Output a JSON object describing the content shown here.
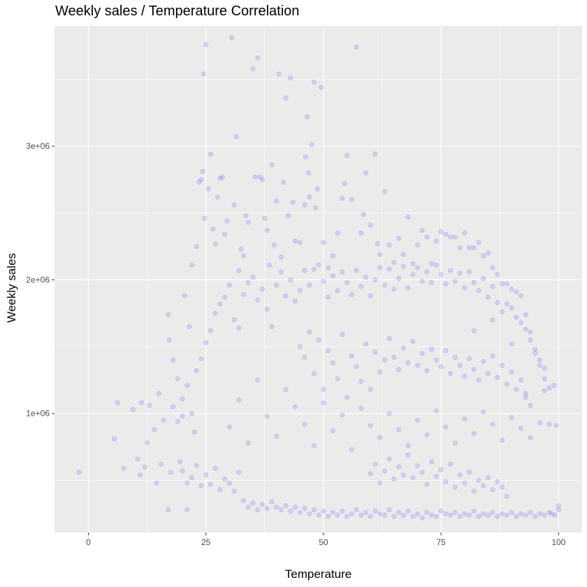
{
  "chart_data": {
    "type": "scatter",
    "title": "Weekly sales / Temperature Correlation",
    "xlabel": "Temperature",
    "ylabel": "Weekly sales",
    "xlim": [
      -7.2,
      105
    ],
    "ylim": [
      110000,
      3900000
    ],
    "x_ticks": [
      {
        "value": 0,
        "label": "0"
      },
      {
        "value": 25,
        "label": "25"
      },
      {
        "value": 50,
        "label": "50"
      },
      {
        "value": 75,
        "label": "75"
      },
      {
        "value": 100,
        "label": "100"
      }
    ],
    "y_ticks": [
      {
        "value": 1000000,
        "label": "1e+06"
      },
      {
        "value": 2000000,
        "label": "2e+06"
      },
      {
        "value": 3000000,
        "label": "3e+06"
      }
    ],
    "grid": true,
    "legend": "none",
    "point_color": "#0000ff",
    "point_alpha": 0.12,
    "panel_color": "#ebebeb",
    "grid_color": "#ffffff",
    "points": [
      [
        -2,
        560000
      ],
      [
        5.5,
        810000
      ],
      [
        6.2,
        1080000
      ],
      [
        7.5,
        590000
      ],
      [
        9.5,
        1030000
      ],
      [
        10.5,
        660000
      ],
      [
        11,
        540000
      ],
      [
        11.3,
        1080000
      ],
      [
        12,
        600000
      ],
      [
        12.5,
        780000
      ],
      [
        13,
        1060000
      ],
      [
        14,
        880000
      ],
      [
        14.5,
        480000
      ],
      [
        15,
        1150000
      ],
      [
        15.5,
        620000
      ],
      [
        16,
        950000
      ],
      [
        17,
        1740000
      ],
      [
        17.2,
        1550000
      ],
      [
        17,
        280000
      ],
      [
        17.5,
        560000
      ],
      [
        18,
        1400000
      ],
      [
        19,
        1260000
      ],
      [
        19.5,
        640000
      ],
      [
        20,
        980000
      ],
      [
        20.5,
        1880000
      ],
      [
        21,
        280000
      ],
      [
        21.5,
        1650000
      ],
      [
        22,
        2110000
      ],
      [
        22.5,
        860000
      ],
      [
        23,
        2250000
      ],
      [
        23.5,
        2730000
      ],
      [
        24,
        2750000
      ],
      [
        24.3,
        2810000
      ],
      [
        24.7,
        2460000
      ],
      [
        24.5,
        3540000
      ],
      [
        25,
        3760000
      ],
      [
        25.5,
        2680000
      ],
      [
        26,
        2940000
      ],
      [
        26.5,
        2380000
      ],
      [
        27,
        2270000
      ],
      [
        27.5,
        2620000
      ],
      [
        28,
        2760000
      ],
      [
        28.5,
        2770000
      ],
      [
        29,
        2340000
      ],
      [
        29.5,
        2440000
      ],
      [
        30.5,
        3810000
      ],
      [
        31,
        2560000
      ],
      [
        31.5,
        3070000
      ],
      [
        32,
        2070000
      ],
      [
        32.5,
        2230000
      ],
      [
        33,
        2180000
      ],
      [
        33.5,
        2480000
      ],
      [
        34,
        2430000
      ],
      [
        35,
        3580000
      ],
      [
        35.5,
        2770000
      ],
      [
        36,
        3660000
      ],
      [
        36.5,
        2770000
      ],
      [
        37,
        2750000
      ],
      [
        37.5,
        2460000
      ],
      [
        38,
        2370000
      ],
      [
        38.5,
        2110000
      ],
      [
        39,
        2860000
      ],
      [
        39.5,
        2260000
      ],
      [
        40,
        2590000
      ],
      [
        40.5,
        3540000
      ],
      [
        41,
        2170000
      ],
      [
        41.5,
        2730000
      ],
      [
        42,
        3360000
      ],
      [
        42.5,
        2480000
      ],
      [
        43,
        3510000
      ],
      [
        43.5,
        2580000
      ],
      [
        44,
        2290000
      ],
      [
        45,
        2280000
      ],
      [
        46,
        2560000
      ],
      [
        46.2,
        2920000
      ],
      [
        46.5,
        3220000
      ],
      [
        46.8,
        2800000
      ],
      [
        47,
        2620000
      ],
      [
        47.5,
        3010000
      ],
      [
        48,
        3480000
      ],
      [
        48.3,
        2540000
      ],
      [
        48.7,
        2680000
      ],
      [
        49.5,
        3440000
      ],
      [
        50,
        2280000
      ],
      [
        51,
        2090000
      ],
      [
        52,
        2180000
      ],
      [
        53,
        2350000
      ],
      [
        54,
        2610000
      ],
      [
        54.5,
        2720000
      ],
      [
        55,
        2930000
      ],
      [
        56,
        2600000
      ],
      [
        57,
        3740000
      ],
      [
        58,
        2350000
      ],
      [
        58.5,
        2490000
      ],
      [
        59,
        2800000
      ],
      [
        60,
        2410000
      ],
      [
        61,
        2940000
      ],
      [
        61.5,
        2270000
      ],
      [
        62,
        2190000
      ],
      [
        63,
        2660000
      ],
      [
        64,
        2260000
      ],
      [
        65,
        2130000
      ],
      [
        66,
        2310000
      ],
      [
        67,
        2190000
      ],
      [
        68,
        2470000
      ],
      [
        69,
        2120000
      ],
      [
        70,
        2260000
      ],
      [
        71,
        2370000
      ],
      [
        72,
        2320000
      ],
      [
        73,
        2120000
      ],
      [
        74,
        2290000
      ],
      [
        75,
        2360000
      ],
      [
        76,
        2340000
      ],
      [
        77,
        2320000
      ],
      [
        78,
        2320000
      ],
      [
        79,
        2240000
      ],
      [
        80,
        2350000
      ],
      [
        81,
        2240000
      ],
      [
        82,
        2240000
      ],
      [
        83,
        2280000
      ],
      [
        84,
        2180000
      ],
      [
        85,
        2200000
      ],
      [
        86,
        2090000
      ],
      [
        87,
        2040000
      ],
      [
        88,
        1970000
      ],
      [
        89,
        1970000
      ],
      [
        90,
        1930000
      ],
      [
        91,
        1910000
      ],
      [
        92,
        1880000
      ],
      [
        93,
        1740000
      ],
      [
        94,
        1610000
      ],
      [
        95,
        1450000
      ],
      [
        96,
        1360000
      ],
      [
        97,
        1260000
      ],
      [
        98,
        1190000
      ],
      [
        99,
        1210000
      ],
      [
        99.5,
        910000
      ],
      [
        99.2,
        240000
      ],
      [
        100,
        280000
      ],
      [
        100,
        310000
      ],
      [
        18,
        1050000
      ],
      [
        19,
        940000
      ],
      [
        20,
        1110000
      ],
      [
        21,
        1210000
      ],
      [
        22,
        1000000
      ],
      [
        23,
        1320000
      ],
      [
        24,
        1410000
      ],
      [
        25,
        1530000
      ],
      [
        26,
        1620000
      ],
      [
        27,
        1750000
      ],
      [
        28,
        1820000
      ],
      [
        29,
        1870000
      ],
      [
        30,
        1960000
      ],
      [
        31,
        1700000
      ],
      [
        32,
        1640000
      ],
      [
        33,
        1890000
      ],
      [
        34,
        1980000
      ],
      [
        35,
        2020000
      ],
      [
        36,
        1850000
      ],
      [
        37,
        1930000
      ],
      [
        38,
        1780000
      ],
      [
        39,
        1650000
      ],
      [
        40,
        1960000
      ],
      [
        41,
        2060000
      ],
      [
        42,
        1880000
      ],
      [
        43,
        2000000
      ],
      [
        44,
        1840000
      ],
      [
        45,
        1920000
      ],
      [
        46,
        2070000
      ],
      [
        47,
        1960000
      ],
      [
        48,
        2080000
      ],
      [
        49,
        2110000
      ],
      [
        50,
        1990000
      ],
      [
        51,
        1870000
      ],
      [
        52,
        2030000
      ],
      [
        53,
        1920000
      ],
      [
        54,
        2060000
      ],
      [
        55,
        1980000
      ],
      [
        56,
        1890000
      ],
      [
        57,
        2070000
      ],
      [
        58,
        1950000
      ],
      [
        59,
        2020000
      ],
      [
        60,
        1880000
      ],
      [
        61,
        2000000
      ],
      [
        62,
        2090000
      ],
      [
        63,
        1960000
      ],
      [
        64,
        2080000
      ],
      [
        65,
        1930000
      ],
      [
        66,
        2010000
      ],
      [
        67,
        2100000
      ],
      [
        68,
        1940000
      ],
      [
        69,
        2040000
      ],
      [
        70,
        2090000
      ],
      [
        71,
        1990000
      ],
      [
        72,
        2060000
      ],
      [
        73,
        1980000
      ],
      [
        74,
        2110000
      ],
      [
        75,
        2040000
      ],
      [
        76,
        1970000
      ],
      [
        77,
        2070000
      ],
      [
        78,
        1990000
      ],
      [
        79,
        2050000
      ],
      [
        80,
        1940000
      ],
      [
        81,
        2060000
      ],
      [
        82,
        1980000
      ],
      [
        83,
        1920000
      ],
      [
        84,
        2010000
      ],
      [
        85,
        1870000
      ],
      [
        86,
        1950000
      ],
      [
        87,
        1830000
      ],
      [
        88,
        1760000
      ],
      [
        89,
        1820000
      ],
      [
        90,
        1790000
      ],
      [
        91,
        1720000
      ],
      [
        92,
        1680000
      ],
      [
        93,
        1630000
      ],
      [
        94,
        1550000
      ],
      [
        95,
        1480000
      ],
      [
        96,
        1400000
      ],
      [
        97,
        1340000
      ],
      [
        20,
        570000
      ],
      [
        21,
        480000
      ],
      [
        22,
        520000
      ],
      [
        23,
        610000
      ],
      [
        24,
        460000
      ],
      [
        25,
        540000
      ],
      [
        26,
        470000
      ],
      [
        27,
        590000
      ],
      [
        28,
        430000
      ],
      [
        29,
        510000
      ],
      [
        30,
        480000
      ],
      [
        31,
        420000
      ],
      [
        32,
        560000
      ],
      [
        33,
        350000
      ],
      [
        34,
        300000
      ],
      [
        35,
        330000
      ],
      [
        36,
        280000
      ],
      [
        37,
        320000
      ],
      [
        38,
        290000
      ],
      [
        39,
        340000
      ],
      [
        40,
        300000
      ],
      [
        41,
        280000
      ],
      [
        42,
        310000
      ],
      [
        43,
        270000
      ],
      [
        44,
        300000
      ],
      [
        45,
        260000
      ],
      [
        46,
        290000
      ],
      [
        47,
        250000
      ],
      [
        48,
        280000
      ],
      [
        49,
        240000
      ],
      [
        50,
        270000
      ],
      [
        51,
        230000
      ],
      [
        52,
        260000
      ],
      [
        53,
        240000
      ],
      [
        54,
        270000
      ],
      [
        55,
        230000
      ],
      [
        56,
        250000
      ],
      [
        57,
        280000
      ],
      [
        58,
        240000
      ],
      [
        59,
        260000
      ],
      [
        60,
        230000
      ],
      [
        61,
        270000
      ],
      [
        62,
        250000
      ],
      [
        63,
        240000
      ],
      [
        64,
        280000
      ],
      [
        65,
        230000
      ],
      [
        66,
        260000
      ],
      [
        67,
        240000
      ],
      [
        68,
        270000
      ],
      [
        69,
        230000
      ],
      [
        70,
        250000
      ],
      [
        71,
        220000
      ],
      [
        72,
        260000
      ],
      [
        73,
        240000
      ],
      [
        74,
        230000
      ],
      [
        75,
        270000
      ],
      [
        76,
        250000
      ],
      [
        77,
        240000
      ],
      [
        78,
        260000
      ],
      [
        79,
        230000
      ],
      [
        80,
        250000
      ],
      [
        81,
        240000
      ],
      [
        82,
        270000
      ],
      [
        83,
        230000
      ],
      [
        84,
        250000
      ],
      [
        85,
        240000
      ],
      [
        86,
        260000
      ],
      [
        87,
        230000
      ],
      [
        88,
        250000
      ],
      [
        89,
        240000
      ],
      [
        90,
        260000
      ],
      [
        91,
        230000
      ],
      [
        92,
        250000
      ],
      [
        93,
        240000
      ],
      [
        94,
        260000
      ],
      [
        95,
        230000
      ],
      [
        96,
        250000
      ],
      [
        97,
        240000
      ],
      [
        98,
        260000
      ],
      [
        98.5,
        250000
      ],
      [
        45,
        1500000
      ],
      [
        46,
        1420000
      ],
      [
        47,
        1610000
      ],
      [
        48,
        1300000
      ],
      [
        49,
        1550000
      ],
      [
        50,
        1180000
      ],
      [
        51,
        1470000
      ],
      [
        52,
        1380000
      ],
      [
        53,
        1260000
      ],
      [
        54,
        1590000
      ],
      [
        55,
        1120000
      ],
      [
        56,
        1430000
      ],
      [
        57,
        1350000
      ],
      [
        58,
        1240000
      ],
      [
        59,
        1520000
      ],
      [
        60,
        1180000
      ],
      [
        61,
        1460000
      ],
      [
        62,
        1310000
      ],
      [
        63,
        1400000
      ],
      [
        64,
        1560000
      ],
      [
        65,
        1420000
      ],
      [
        66,
        1330000
      ],
      [
        67,
        1490000
      ],
      [
        68,
        1380000
      ],
      [
        69,
        1540000
      ],
      [
        70,
        1360000
      ],
      [
        71,
        1450000
      ],
      [
        72,
        1320000
      ],
      [
        73,
        1480000
      ],
      [
        74,
        1400000
      ],
      [
        75,
        1350000
      ],
      [
        76,
        1470000
      ],
      [
        77,
        1300000
      ],
      [
        78,
        1420000
      ],
      [
        79,
        1360000
      ],
      [
        80,
        1280000
      ],
      [
        81,
        1410000
      ],
      [
        82,
        1330000
      ],
      [
        83,
        1250000
      ],
      [
        84,
        1390000
      ],
      [
        85,
        1300000
      ],
      [
        86,
        1430000
      ],
      [
        87,
        1270000
      ],
      [
        88,
        1360000
      ],
      [
        89,
        1220000
      ],
      [
        90,
        1310000
      ],
      [
        91,
        1180000
      ],
      [
        92,
        1250000
      ],
      [
        93,
        1120000
      ],
      [
        94,
        1060000
      ],
      [
        60,
        550000
      ],
      [
        61,
        620000
      ],
      [
        62,
        480000
      ],
      [
        63,
        570000
      ],
      [
        64,
        660000
      ],
      [
        65,
        510000
      ],
      [
        66,
        600000
      ],
      [
        67,
        540000
      ],
      [
        68,
        690000
      ],
      [
        69,
        520000
      ],
      [
        70,
        610000
      ],
      [
        71,
        560000
      ],
      [
        72,
        470000
      ],
      [
        73,
        640000
      ],
      [
        74,
        530000
      ],
      [
        75,
        580000
      ],
      [
        76,
        490000
      ],
      [
        77,
        620000
      ],
      [
        78,
        450000
      ],
      [
        79,
        540000
      ],
      [
        80,
        480000
      ],
      [
        81,
        560000
      ],
      [
        82,
        420000
      ],
      [
        83,
        500000
      ],
      [
        84,
        460000
      ],
      [
        85,
        520000
      ],
      [
        86,
        430000
      ],
      [
        87,
        490000
      ],
      [
        88,
        450000
      ],
      [
        89,
        380000
      ],
      [
        30,
        900000
      ],
      [
        32,
        1100000
      ],
      [
        34,
        780000
      ],
      [
        36,
        1250000
      ],
      [
        38,
        980000
      ],
      [
        40,
        830000
      ],
      [
        42,
        1180000
      ],
      [
        44,
        1050000
      ],
      [
        46,
        920000
      ],
      [
        48,
        760000
      ],
      [
        50,
        1080000
      ],
      [
        52,
        870000
      ],
      [
        54,
        990000
      ],
      [
        56,
        730000
      ],
      [
        58,
        1040000
      ],
      [
        60,
        910000
      ],
      [
        62,
        820000
      ],
      [
        64,
        1000000
      ],
      [
        66,
        880000
      ],
      [
        68,
        760000
      ],
      [
        70,
        950000
      ],
      [
        72,
        840000
      ],
      [
        74,
        1020000
      ],
      [
        76,
        900000
      ],
      [
        78,
        780000
      ],
      [
        80,
        960000
      ],
      [
        82,
        850000
      ],
      [
        84,
        1010000
      ],
      [
        86,
        920000
      ],
      [
        88,
        800000
      ],
      [
        90,
        970000
      ],
      [
        92,
        890000
      ],
      [
        94,
        820000
      ],
      [
        96,
        930000
      ],
      [
        97,
        1170000
      ],
      [
        98,
        920000
      ],
      [
        93,
        1150000
      ],
      [
        90,
        1520000
      ],
      [
        86,
        1700000
      ],
      [
        82,
        1620000
      ]
    ]
  }
}
